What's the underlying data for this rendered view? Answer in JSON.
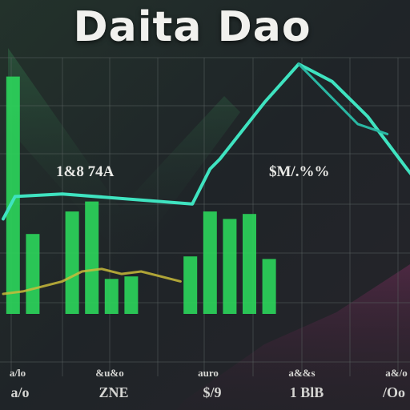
{
  "chart_data": {
    "type": "bar",
    "title": "Daita Dao",
    "annotations": [
      {
        "text": "1&8 74A",
        "at_category": 3
      },
      {
        "text": "$M/.%%",
        "at_category": 14
      }
    ],
    "x_tick_labels_top": [
      "a/lo",
      "&u&o",
      "auro",
      "a&&s",
      "a&/o"
    ],
    "x_tick_labels_bottom": [
      "a/o",
      "ZNE",
      "$/9",
      "1 BlB",
      "/Oo"
    ],
    "ylim": [
      0,
      100
    ],
    "grid": true,
    "legend": "none",
    "bars": {
      "color": "#2bd35a",
      "values": [
        95,
        32,
        0,
        41,
        45,
        14,
        15,
        0,
        0,
        23,
        41,
        38,
        40,
        22
      ]
    },
    "series": [
      {
        "style": "line",
        "color": "#3fe3c0",
        "points": [
          [
            0,
            38
          ],
          [
            0.6,
            47
          ],
          [
            3,
            48
          ],
          [
            9.6,
            44
          ],
          [
            10.5,
            58
          ],
          [
            11,
            62
          ],
          [
            11.8,
            70
          ],
          [
            13.3,
            85
          ],
          [
            15,
            100
          ],
          [
            16.7,
            93
          ],
          [
            18.5,
            79
          ],
          [
            20.5,
            58
          ],
          [
            21.1,
            52
          ]
        ]
      },
      {
        "style": "line",
        "color": "#2ab7a3",
        "points": [
          [
            15,
            100
          ],
          [
            16.5,
            88
          ],
          [
            18,
            76
          ],
          [
            19.5,
            72
          ]
        ]
      },
      {
        "style": "line",
        "color": "#c9bb3a",
        "points": [
          [
            0,
            8
          ],
          [
            1,
            9
          ],
          [
            3,
            13
          ],
          [
            4,
            17
          ],
          [
            5,
            18
          ],
          [
            6,
            16
          ],
          [
            7,
            17
          ],
          [
            8,
            15
          ],
          [
            9,
            13
          ]
        ]
      }
    ]
  }
}
